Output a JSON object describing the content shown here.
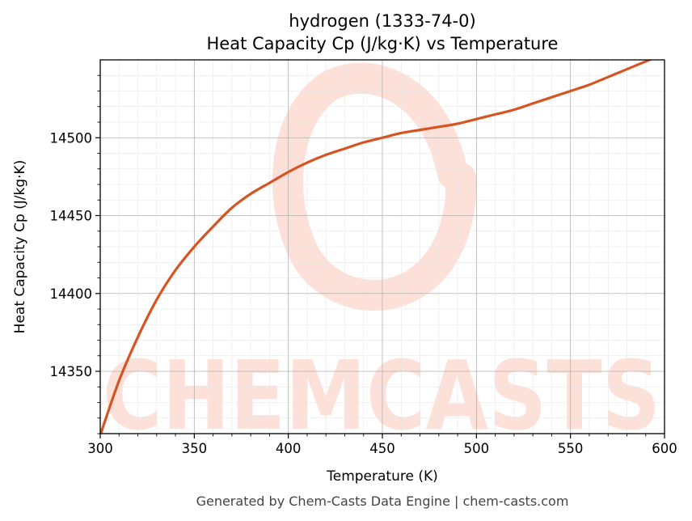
{
  "chart_data": {
    "type": "line",
    "title": "hydrogen (1333-74-0)",
    "subtitle": "Heat Capacity Cp (J/kg·K) vs Temperature",
    "xlabel": "Temperature (K)",
    "ylabel": "Heat Capacity Cp (J/kg·K)",
    "xlim": [
      300,
      600
    ],
    "ylim": [
      14310,
      14550
    ],
    "xticks": [
      300,
      350,
      400,
      450,
      500,
      550,
      600
    ],
    "yticks": [
      14350,
      14400,
      14450,
      14500
    ],
    "grid": true,
    "series": [
      {
        "color": "#d65422",
        "x": [
          300,
          310,
          320,
          330,
          340,
          350,
          360,
          370,
          380,
          390,
          400,
          410,
          420,
          430,
          440,
          450,
          460,
          470,
          480,
          490,
          500,
          510,
          520,
          530,
          540,
          550,
          560,
          570,
          580,
          590,
          600
        ],
        "y": [
          14309,
          14344,
          14372,
          14396,
          14415,
          14430,
          14443,
          14455,
          14464,
          14471,
          14478,
          14484,
          14489,
          14493,
          14497,
          14500,
          14503,
          14505,
          14507,
          14509,
          14512,
          14515,
          14518,
          14522,
          14526,
          14530,
          14534,
          14539,
          14544,
          14549,
          14554
        ]
      }
    ]
  },
  "watermark": {
    "text": "CHEMCASTS",
    "color": "#fde0d8"
  },
  "footer": "Generated by Chem-Casts Data Engine | chem-casts.com"
}
